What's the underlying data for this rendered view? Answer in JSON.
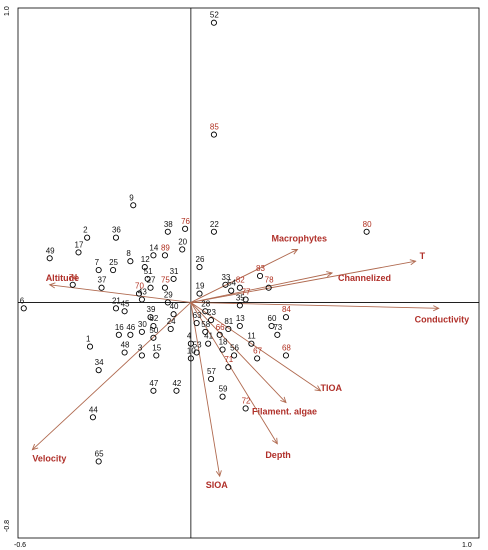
{
  "chart_data": {
    "type": "scatter",
    "xlim": [
      -0.6,
      1.0
    ],
    "ylim": [
      -0.8,
      1.0
    ],
    "axis_ticks": {
      "x_min_label": "-0.6",
      "x_max_label": "1.0",
      "y_min_label": "-0.8",
      "y_max_label": "1.0"
    },
    "grid": false,
    "sites": [
      {
        "id": "52",
        "x": 0.08,
        "y": 0.95,
        "color": "black"
      },
      {
        "id": "85",
        "x": 0.08,
        "y": 0.57,
        "color": "red"
      },
      {
        "id": "9",
        "x": -0.2,
        "y": 0.33,
        "color": "black"
      },
      {
        "id": "38",
        "x": -0.08,
        "y": 0.24,
        "color": "black"
      },
      {
        "id": "76",
        "x": -0.02,
        "y": 0.25,
        "color": "red"
      },
      {
        "id": "22",
        "x": 0.08,
        "y": 0.24,
        "color": "black"
      },
      {
        "id": "80",
        "x": 0.61,
        "y": 0.24,
        "color": "red"
      },
      {
        "id": "2",
        "x": -0.36,
        "y": 0.22,
        "color": "black"
      },
      {
        "id": "36",
        "x": -0.26,
        "y": 0.22,
        "color": "black"
      },
      {
        "id": "20",
        "x": -0.03,
        "y": 0.18,
        "color": "black"
      },
      {
        "id": "14",
        "x": -0.13,
        "y": 0.16,
        "color": "black"
      },
      {
        "id": "89",
        "x": -0.09,
        "y": 0.16,
        "color": "red"
      },
      {
        "id": "17",
        "x": -0.39,
        "y": 0.17,
        "color": "black"
      },
      {
        "id": "49",
        "x": -0.49,
        "y": 0.15,
        "color": "black"
      },
      {
        "id": "8",
        "x": -0.21,
        "y": 0.14,
        "color": "black"
      },
      {
        "id": "12",
        "x": -0.16,
        "y": 0.12,
        "color": "black"
      },
      {
        "id": "7",
        "x": -0.32,
        "y": 0.11,
        "color": "black"
      },
      {
        "id": "25",
        "x": -0.27,
        "y": 0.11,
        "color": "black"
      },
      {
        "id": "26",
        "x": 0.03,
        "y": 0.12,
        "color": "black"
      },
      {
        "id": "51",
        "x": -0.15,
        "y": 0.08,
        "color": "black"
      },
      {
        "id": "31",
        "x": -0.06,
        "y": 0.08,
        "color": "black"
      },
      {
        "id": "74",
        "x": -0.41,
        "y": 0.06,
        "color": "red"
      },
      {
        "id": "37",
        "x": -0.31,
        "y": 0.05,
        "color": "black"
      },
      {
        "id": "27",
        "x": -0.14,
        "y": 0.05,
        "color": "black"
      },
      {
        "id": "75",
        "x": -0.09,
        "y": 0.05,
        "color": "red"
      },
      {
        "id": "70",
        "x": -0.18,
        "y": 0.03,
        "color": "red"
      },
      {
        "id": "33",
        "x": 0.12,
        "y": 0.06,
        "color": "black"
      },
      {
        "id": "82",
        "x": 0.17,
        "y": 0.05,
        "color": "red"
      },
      {
        "id": "83",
        "x": 0.24,
        "y": 0.09,
        "color": "red"
      },
      {
        "id": "78",
        "x": 0.27,
        "y": 0.05,
        "color": "red"
      },
      {
        "id": "77",
        "x": 0.19,
        "y": 0.01,
        "color": "red"
      },
      {
        "id": "43",
        "x": -0.17,
        "y": 0.01,
        "color": "black"
      },
      {
        "id": "29",
        "x": -0.08,
        "y": 0.0,
        "color": "black"
      },
      {
        "id": "19",
        "x": 0.03,
        "y": 0.03,
        "color": "black"
      },
      {
        "id": "54",
        "x": 0.14,
        "y": 0.04,
        "color": "black"
      },
      {
        "id": "21",
        "x": -0.26,
        "y": -0.02,
        "color": "black"
      },
      {
        "id": "45",
        "x": -0.23,
        "y": -0.03,
        "color": "black"
      },
      {
        "id": "6",
        "x": -0.58,
        "y": -0.02,
        "color": "black"
      },
      {
        "id": "39",
        "x": -0.14,
        "y": -0.05,
        "color": "black"
      },
      {
        "id": "40",
        "x": -0.06,
        "y": -0.04,
        "color": "black"
      },
      {
        "id": "28",
        "x": 0.05,
        "y": -0.03,
        "color": "black"
      },
      {
        "id": "35",
        "x": 0.17,
        "y": -0.01,
        "color": "black"
      },
      {
        "id": "84",
        "x": 0.33,
        "y": -0.05,
        "color": "red"
      },
      {
        "id": "62",
        "x": -0.13,
        "y": -0.08,
        "color": "black"
      },
      {
        "id": "24",
        "x": -0.07,
        "y": -0.09,
        "color": "black"
      },
      {
        "id": "23",
        "x": 0.07,
        "y": -0.06,
        "color": "black"
      },
      {
        "id": "63",
        "x": 0.02,
        "y": -0.07,
        "color": "black"
      },
      {
        "id": "81",
        "x": 0.13,
        "y": -0.09,
        "color": "black"
      },
      {
        "id": "13",
        "x": 0.17,
        "y": -0.08,
        "color": "black"
      },
      {
        "id": "60",
        "x": 0.28,
        "y": -0.08,
        "color": "black"
      },
      {
        "id": "16",
        "x": -0.25,
        "y": -0.11,
        "color": "black"
      },
      {
        "id": "46",
        "x": -0.21,
        "y": -0.11,
        "color": "black"
      },
      {
        "id": "30",
        "x": -0.17,
        "y": -0.1,
        "color": "black"
      },
      {
        "id": "50",
        "x": -0.13,
        "y": -0.12,
        "color": "black"
      },
      {
        "id": "58",
        "x": 0.05,
        "y": -0.1,
        "color": "black"
      },
      {
        "id": "66",
        "x": 0.1,
        "y": -0.11,
        "color": "red"
      },
      {
        "id": "73",
        "x": 0.3,
        "y": -0.11,
        "color": "black"
      },
      {
        "id": "1",
        "x": -0.35,
        "y": -0.15,
        "color": "black"
      },
      {
        "id": "4",
        "x": 0.0,
        "y": -0.14,
        "color": "black"
      },
      {
        "id": "41",
        "x": 0.06,
        "y": -0.14,
        "color": "black"
      },
      {
        "id": "11",
        "x": 0.21,
        "y": -0.14,
        "color": "black"
      },
      {
        "id": "48",
        "x": -0.23,
        "y": -0.17,
        "color": "black"
      },
      {
        "id": "3",
        "x": -0.17,
        "y": -0.18,
        "color": "black"
      },
      {
        "id": "15",
        "x": -0.12,
        "y": -0.18,
        "color": "black"
      },
      {
        "id": "53",
        "x": 0.02,
        "y": -0.17,
        "color": "black"
      },
      {
        "id": "18",
        "x": 0.11,
        "y": -0.16,
        "color": "black"
      },
      {
        "id": "56",
        "x": 0.15,
        "y": -0.18,
        "color": "black"
      },
      {
        "id": "10",
        "x": 0.0,
        "y": -0.19,
        "color": "black"
      },
      {
        "id": "67",
        "x": 0.23,
        "y": -0.19,
        "color": "red"
      },
      {
        "id": "68",
        "x": 0.33,
        "y": -0.18,
        "color": "red"
      },
      {
        "id": "34",
        "x": -0.32,
        "y": -0.23,
        "color": "black"
      },
      {
        "id": "71",
        "x": 0.13,
        "y": -0.22,
        "color": "red"
      },
      {
        "id": "57",
        "x": 0.07,
        "y": -0.26,
        "color": "black"
      },
      {
        "id": "47",
        "x": -0.13,
        "y": -0.3,
        "color": "black"
      },
      {
        "id": "42",
        "x": -0.05,
        "y": -0.3,
        "color": "black"
      },
      {
        "id": "59",
        "x": 0.11,
        "y": -0.32,
        "color": "black"
      },
      {
        "id": "72",
        "x": 0.19,
        "y": -0.36,
        "color": "red"
      },
      {
        "id": "44",
        "x": -0.34,
        "y": -0.39,
        "color": "black"
      },
      {
        "id": "65",
        "x": -0.32,
        "y": -0.54,
        "color": "black"
      }
    ],
    "vectors": [
      {
        "name": "Macrophytes",
        "x": 0.37,
        "y": 0.18
      },
      {
        "name": "T",
        "x": 0.78,
        "y": 0.14
      },
      {
        "name": "Channelized",
        "x": 0.49,
        "y": 0.1
      },
      {
        "name": "Conductivity",
        "x": 0.86,
        "y": -0.02
      },
      {
        "name": "Altitude",
        "x": -0.49,
        "y": 0.06
      },
      {
        "name": "TIOA",
        "x": 0.45,
        "y": -0.3
      },
      {
        "name": "Filament. algae",
        "x": 0.33,
        "y": -0.34
      },
      {
        "name": "Depth",
        "x": 0.3,
        "y": -0.48
      },
      {
        "name": "SIOA",
        "x": 0.1,
        "y": -0.59
      },
      {
        "name": "Velocity",
        "x": -0.55,
        "y": -0.5
      }
    ]
  }
}
